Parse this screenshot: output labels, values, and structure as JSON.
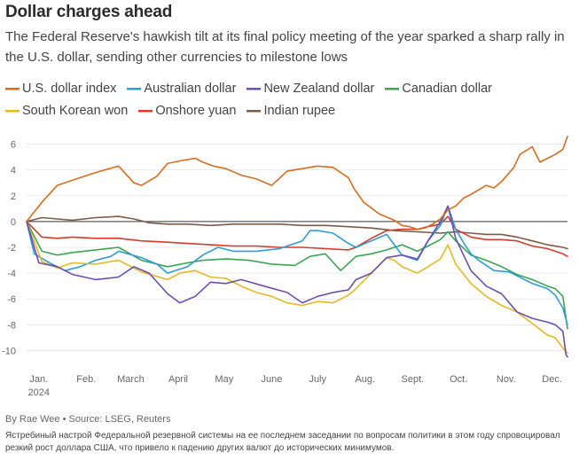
{
  "title": "Dollar charges ahead",
  "subtitle": "The Federal Reserve's hawkish tilt at its final policy meeting of the year sparked a sharp rally in the U.S. dollar, sending other currencies to milestone lows",
  "byline": "By Rae Wee • Source: LSEG, Reuters",
  "caption": "Ястребиный настрой Федеральной резервной системы на ее последнем заседании по вопросам политики в этом году спровоцировал резкий рост доллара США, что привело к падению других валют до исторических минимумов.",
  "chart_data": {
    "type": "line",
    "ylabel": "",
    "xlabel": "",
    "ylim": [
      -11,
      7
    ],
    "yticks": [
      "6",
      "4",
      "2",
      "0",
      "-2",
      "-4",
      "-6",
      "-8",
      "-10"
    ],
    "ytick_values": [
      6,
      4,
      2,
      0,
      -2,
      -4,
      -6,
      -8,
      -10
    ],
    "xtick_labels": [
      "Jan.",
      "Feb.",
      "March",
      "April",
      "May",
      "June",
      "July",
      "Aug.",
      "Sept.",
      "Oct.",
      "Nov.",
      "Dec."
    ],
    "xtick_positions": [
      1,
      32,
      61,
      92,
      122,
      153,
      183,
      214,
      245,
      275,
      306,
      336
    ],
    "year_label": "2024",
    "xlim": [
      0,
      353
    ],
    "series": [
      {
        "name": "U.S. dollar index",
        "color": "#d96b1e",
        "x": [
          0,
          10,
          20,
          30,
          45,
          60,
          70,
          75,
          85,
          92,
          100,
          110,
          115,
          122,
          130,
          140,
          150,
          160,
          170,
          180,
          190,
          200,
          210,
          214,
          220,
          230,
          240,
          245,
          250,
          255,
          260,
          265,
          270,
          275,
          280,
          285,
          290,
          300,
          305,
          310,
          318,
          322,
          330,
          335,
          340,
          345,
          350,
          353
        ],
        "values": [
          0,
          1.5,
          2.8,
          3.2,
          3.8,
          4.3,
          3.0,
          2.8,
          3.5,
          4.5,
          4.7,
          4.9,
          4.6,
          4.3,
          4.1,
          3.6,
          3.3,
          2.8,
          3.9,
          4.1,
          4.3,
          4.2,
          3.4,
          2.5,
          1.5,
          0.6,
          0.1,
          -0.3,
          -0.4,
          -0.6,
          -0.5,
          -0.2,
          0.2,
          0.9,
          1.2,
          1.8,
          2.1,
          2.8,
          2.6,
          3.1,
          4.2,
          5.2,
          5.8,
          4.6,
          4.9,
          5.2,
          5.6,
          6.6
        ]
      },
      {
        "name": "Australian dollar",
        "color": "#2e9cd6",
        "x": [
          0,
          5,
          15,
          25,
          35,
          45,
          55,
          60,
          75,
          85,
          92,
          105,
          115,
          125,
          135,
          150,
          165,
          180,
          185,
          190,
          200,
          210,
          215,
          225,
          235,
          240,
          245,
          255,
          262,
          270,
          275,
          280,
          285,
          290,
          295,
          305,
          315,
          320,
          330,
          340,
          345,
          350,
          353
        ],
        "values": [
          0,
          -2.5,
          -3.2,
          -3.8,
          -3.5,
          -3.0,
          -2.7,
          -2.3,
          -2.8,
          -3.3,
          -4.0,
          -3.5,
          -2.6,
          -2.0,
          -2.3,
          -2.3,
          -2.1,
          -1.5,
          -0.7,
          -0.7,
          -0.9,
          -1.7,
          -2.0,
          -1.5,
          -1.0,
          -1.8,
          -2.6,
          -3.0,
          -1.5,
          -0.3,
          1.2,
          -0.6,
          -1.6,
          -2.5,
          -3.0,
          -3.8,
          -3.9,
          -4.2,
          -4.8,
          -5.2,
          -5.7,
          -6.7,
          -8.0
        ]
      },
      {
        "name": "New Zealand dollar",
        "color": "#6a4fb0",
        "x": [
          0,
          8,
          20,
          30,
          45,
          60,
          70,
          80,
          92,
          100,
          110,
          120,
          130,
          140,
          155,
          170,
          180,
          190,
          200,
          210,
          215,
          225,
          235,
          245,
          255,
          262,
          270,
          275,
          280,
          290,
          300,
          310,
          320,
          330,
          340,
          345,
          350,
          352,
          353
        ],
        "values": [
          0,
          -3.2,
          -3.5,
          -4.1,
          -4.5,
          -4.3,
          -3.5,
          -4.0,
          -5.6,
          -6.3,
          -5.8,
          -4.7,
          -4.8,
          -4.5,
          -5.0,
          -5.5,
          -6.3,
          -5.8,
          -5.5,
          -5.3,
          -4.5,
          -4.0,
          -2.8,
          -2.6,
          -2.9,
          -1.5,
          0.0,
          1.2,
          -1.3,
          -3.8,
          -5.0,
          -5.6,
          -7.0,
          -7.5,
          -7.8,
          -8.0,
          -8.5,
          -10.3,
          -10.5
        ]
      },
      {
        "name": "Canadian dollar",
        "color": "#3aa655",
        "x": [
          0,
          10,
          20,
          30,
          45,
          60,
          75,
          92,
          105,
          115,
          130,
          145,
          160,
          175,
          185,
          195,
          205,
          215,
          225,
          235,
          245,
          255,
          262,
          270,
          275,
          280,
          290,
          300,
          310,
          320,
          330,
          340,
          345,
          350,
          353
        ],
        "values": [
          0,
          -2.3,
          -2.6,
          -2.4,
          -2.2,
          -2.0,
          -3.0,
          -3.5,
          -3.2,
          -3.0,
          -2.9,
          -3.0,
          -3.3,
          -3.4,
          -2.7,
          -2.5,
          -3.8,
          -2.7,
          -2.5,
          -2.2,
          -1.8,
          -2.3,
          -1.9,
          -1.4,
          -0.8,
          -1.5,
          -2.6,
          -3.0,
          -3.5,
          -4.1,
          -4.5,
          -5.0,
          -5.2,
          -5.8,
          -8.3
        ]
      },
      {
        "name": "South Korean won",
        "color": "#e6b822",
        "x": [
          0,
          10,
          20,
          30,
          45,
          60,
          75,
          92,
          100,
          110,
          120,
          130,
          140,
          150,
          160,
          170,
          180,
          190,
          200,
          210,
          215,
          225,
          235,
          240,
          245,
          255,
          262,
          270,
          275,
          280,
          290,
          300,
          310,
          320,
          330,
          340,
          345,
          350,
          353
        ],
        "values": [
          0,
          -3.1,
          -3.6,
          -3.2,
          -3.3,
          -3.0,
          -3.9,
          -4.5,
          -4.0,
          -3.8,
          -4.3,
          -4.4,
          -5.0,
          -5.5,
          -5.8,
          -6.3,
          -6.5,
          -6.2,
          -6.3,
          -5.7,
          -5.2,
          -4.0,
          -2.8,
          -3.0,
          -3.5,
          -4.0,
          -3.5,
          -2.9,
          -1.8,
          -3.3,
          -4.8,
          -5.8,
          -6.5,
          -7.0,
          -7.9,
          -8.8,
          -9.0,
          -9.8,
          -10.2
        ]
      },
      {
        "name": "Onshore yuan",
        "color": "#d63a2b",
        "x": [
          0,
          10,
          20,
          30,
          45,
          60,
          75,
          92,
          105,
          120,
          135,
          150,
          165,
          180,
          195,
          210,
          215,
          225,
          235,
          245,
          255,
          262,
          270,
          275,
          280,
          290,
          300,
          310,
          320,
          330,
          340,
          345,
          350,
          353
        ],
        "values": [
          0,
          -1.2,
          -1.3,
          -1.2,
          -1.3,
          -1.3,
          -1.5,
          -1.6,
          -1.7,
          -1.8,
          -1.9,
          -1.9,
          -2.0,
          -2.0,
          -2.1,
          -2.2,
          -2.0,
          -1.3,
          -0.7,
          -0.6,
          -0.6,
          -0.4,
          -0.2,
          0.4,
          -0.6,
          -1.2,
          -1.4,
          -1.4,
          -1.5,
          -1.9,
          -2.1,
          -2.3,
          -2.5,
          -2.7
        ]
      },
      {
        "name": "Indian rupee",
        "color": "#7a5a4a",
        "x": [
          0,
          10,
          20,
          30,
          45,
          60,
          70,
          80,
          92,
          105,
          120,
          135,
          150,
          165,
          180,
          195,
          210,
          225,
          240,
          255,
          270,
          280,
          290,
          300,
          310,
          320,
          330,
          340,
          350,
          353
        ],
        "values": [
          0,
          0.3,
          0.2,
          0.1,
          0.3,
          0.4,
          0.2,
          -0.1,
          -0.2,
          -0.2,
          -0.3,
          -0.2,
          -0.2,
          -0.2,
          -0.3,
          -0.3,
          -0.4,
          -0.5,
          -0.7,
          -0.8,
          -0.9,
          -0.8,
          -0.9,
          -1.0,
          -1.0,
          -1.2,
          -1.5,
          -1.8,
          -2.0,
          -2.1
        ]
      }
    ]
  }
}
